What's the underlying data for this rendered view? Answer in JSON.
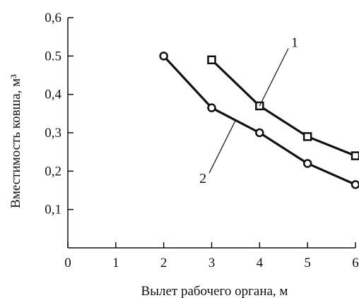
{
  "chart_data": {
    "type": "line",
    "xlabel": "Вылет рабочего органа, м",
    "ylabel": "Вместимость ковша, м³",
    "xlim": [
      0,
      6
    ],
    "ylim": [
      0,
      0.6
    ],
    "grid": false,
    "x_ticks": [
      {
        "value": 0,
        "label": "0"
      },
      {
        "value": 1,
        "label": "1"
      },
      {
        "value": 2,
        "label": "2"
      },
      {
        "value": 3,
        "label": "3"
      },
      {
        "value": 4,
        "label": "4"
      },
      {
        "value": 5,
        "label": "5"
      },
      {
        "value": 6,
        "label": "6"
      }
    ],
    "y_ticks": [
      {
        "value": 0.1,
        "label": "0,1"
      },
      {
        "value": 0.2,
        "label": "0,2"
      },
      {
        "value": 0.3,
        "label": "0,3"
      },
      {
        "value": 0.4,
        "label": "0,4"
      },
      {
        "value": 0.5,
        "label": "0.5"
      },
      {
        "value": 0.6,
        "label": "0,6"
      }
    ],
    "series": [
      {
        "name": "1",
        "marker": "square",
        "x": [
          3,
          4,
          5,
          6
        ],
        "y": [
          0.49,
          0.37,
          0.29,
          0.24
        ],
        "label_anchor": {
          "x": 4.0,
          "y": 0.37
        },
        "label_at": {
          "x": 4.6,
          "y": 0.52
        }
      },
      {
        "name": "2",
        "marker": "circle",
        "x": [
          2,
          3,
          4,
          5,
          6
        ],
        "y": [
          0.5,
          0.365,
          0.3,
          0.22,
          0.165
        ],
        "label_anchor": {
          "x": 3.5,
          "y": 0.333
        },
        "label_at": {
          "x": 2.95,
          "y": 0.195
        }
      }
    ]
  }
}
